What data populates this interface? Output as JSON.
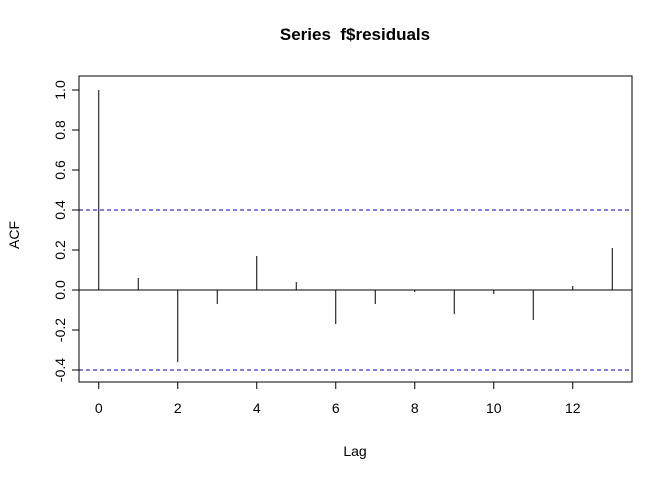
{
  "chart_data": {
    "type": "bar",
    "title": "Series  f$residuals",
    "xlabel": "Lag",
    "ylabel": "ACF",
    "x": [
      0,
      1,
      2,
      3,
      4,
      5,
      6,
      7,
      8,
      9,
      10,
      11,
      12,
      13
    ],
    "values": [
      1.0,
      0.06,
      -0.36,
      -0.07,
      0.17,
      0.04,
      -0.17,
      -0.07,
      -0.01,
      -0.12,
      -0.02,
      -0.15,
      0.02,
      0.21
    ],
    "xlim": [
      -0.5,
      13.5
    ],
    "ylim": [
      -0.46,
      1.07
    ],
    "x_ticks": [
      0,
      2,
      4,
      6,
      8,
      10,
      12
    ],
    "y_ticks": [
      -0.4,
      -0.2,
      0.0,
      0.2,
      0.4,
      0.6,
      0.8,
      1.0
    ],
    "confidence_bounds": [
      0.4,
      -0.4
    ],
    "colors": {
      "bars": "#000000",
      "confidence": "#0000cc",
      "zero_line": "#000000"
    },
    "grid": false
  }
}
